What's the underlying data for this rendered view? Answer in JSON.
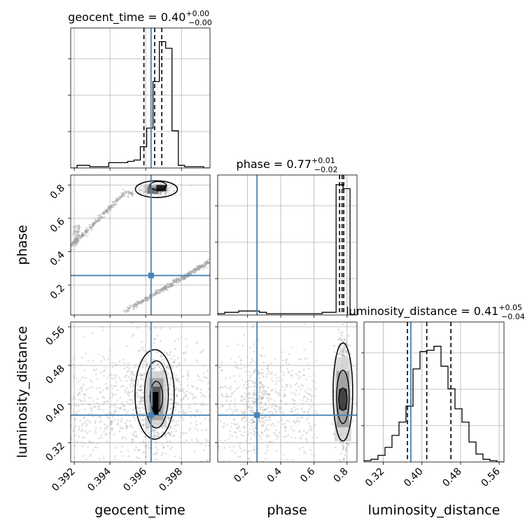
{
  "chart_data": {
    "type": "corner",
    "colors": {
      "truth": "#4682b4",
      "hist": "#000000",
      "points": "#9a9a9a",
      "grid": "#b0b0b0"
    },
    "parameters": [
      {
        "name": "geocent_time",
        "title_value": "0.40",
        "title_plus": "+0.00",
        "title_minus": "−0.00",
        "range": [
          0.3918,
          0.3996
        ],
        "truth": 0.3963,
        "quantiles": [
          0.3959,
          0.3965,
          0.3969
        ],
        "ticks": [
          "0.392",
          "0.394",
          "0.396",
          "0.398"
        ],
        "tick_values": [
          0.392,
          0.394,
          0.396,
          0.398
        ]
      },
      {
        "name": "phase",
        "title_value": "0.77",
        "title_plus": "+0.01",
        "title_minus": "−0.02",
        "range": [
          0.02,
          0.86
        ],
        "truth": 0.257,
        "quantiles": [
          0.755,
          0.77,
          0.78
        ],
        "ticks": [
          "0.2",
          "0.4",
          "0.6",
          "0.8"
        ],
        "tick_values": [
          0.2,
          0.4,
          0.6,
          0.8
        ]
      },
      {
        "name": "luminosity_distance",
        "title_value": "0.41",
        "title_plus": "+0.05",
        "title_minus": "−0.04",
        "range": [
          0.28,
          0.57
        ],
        "truth": 0.377,
        "quantiles": [
          0.37,
          0.41,
          0.46
        ],
        "ticks": [
          "0.32",
          "0.40",
          "0.48",
          "0.56"
        ],
        "tick_values": [
          0.32,
          0.4,
          0.48,
          0.56
        ]
      }
    ],
    "histograms": [
      {
        "param": "geocent_time",
        "ymax": 1.0,
        "counts": [
          0.0,
          0.02,
          0.02,
          0.01,
          0.01,
          0.01,
          0.04,
          0.04,
          0.04,
          0.05,
          0.06,
          0.16,
          0.3,
          0.65,
          0.95,
          0.9,
          0.28,
          0.02,
          0.01,
          0.01,
          0.01,
          0.0
        ]
      },
      {
        "param": "phase",
        "ymax": 1.0,
        "counts": [
          0.01,
          0.02,
          0.02,
          0.03,
          0.03,
          0.03,
          0.02,
          0.01,
          0.01,
          0.01,
          0.01,
          0.01,
          0.01,
          0.01,
          0.01,
          0.02,
          0.02,
          0.98,
          0.95,
          0.0
        ]
      },
      {
        "param": "luminosity_distance",
        "ymax": 1.0,
        "counts": [
          0.01,
          0.02,
          0.05,
          0.11,
          0.2,
          0.3,
          0.42,
          0.7,
          0.83,
          0.84,
          0.87,
          0.72,
          0.55,
          0.4,
          0.3,
          0.15,
          0.06,
          0.02,
          0.01,
          0.0
        ]
      }
    ]
  }
}
